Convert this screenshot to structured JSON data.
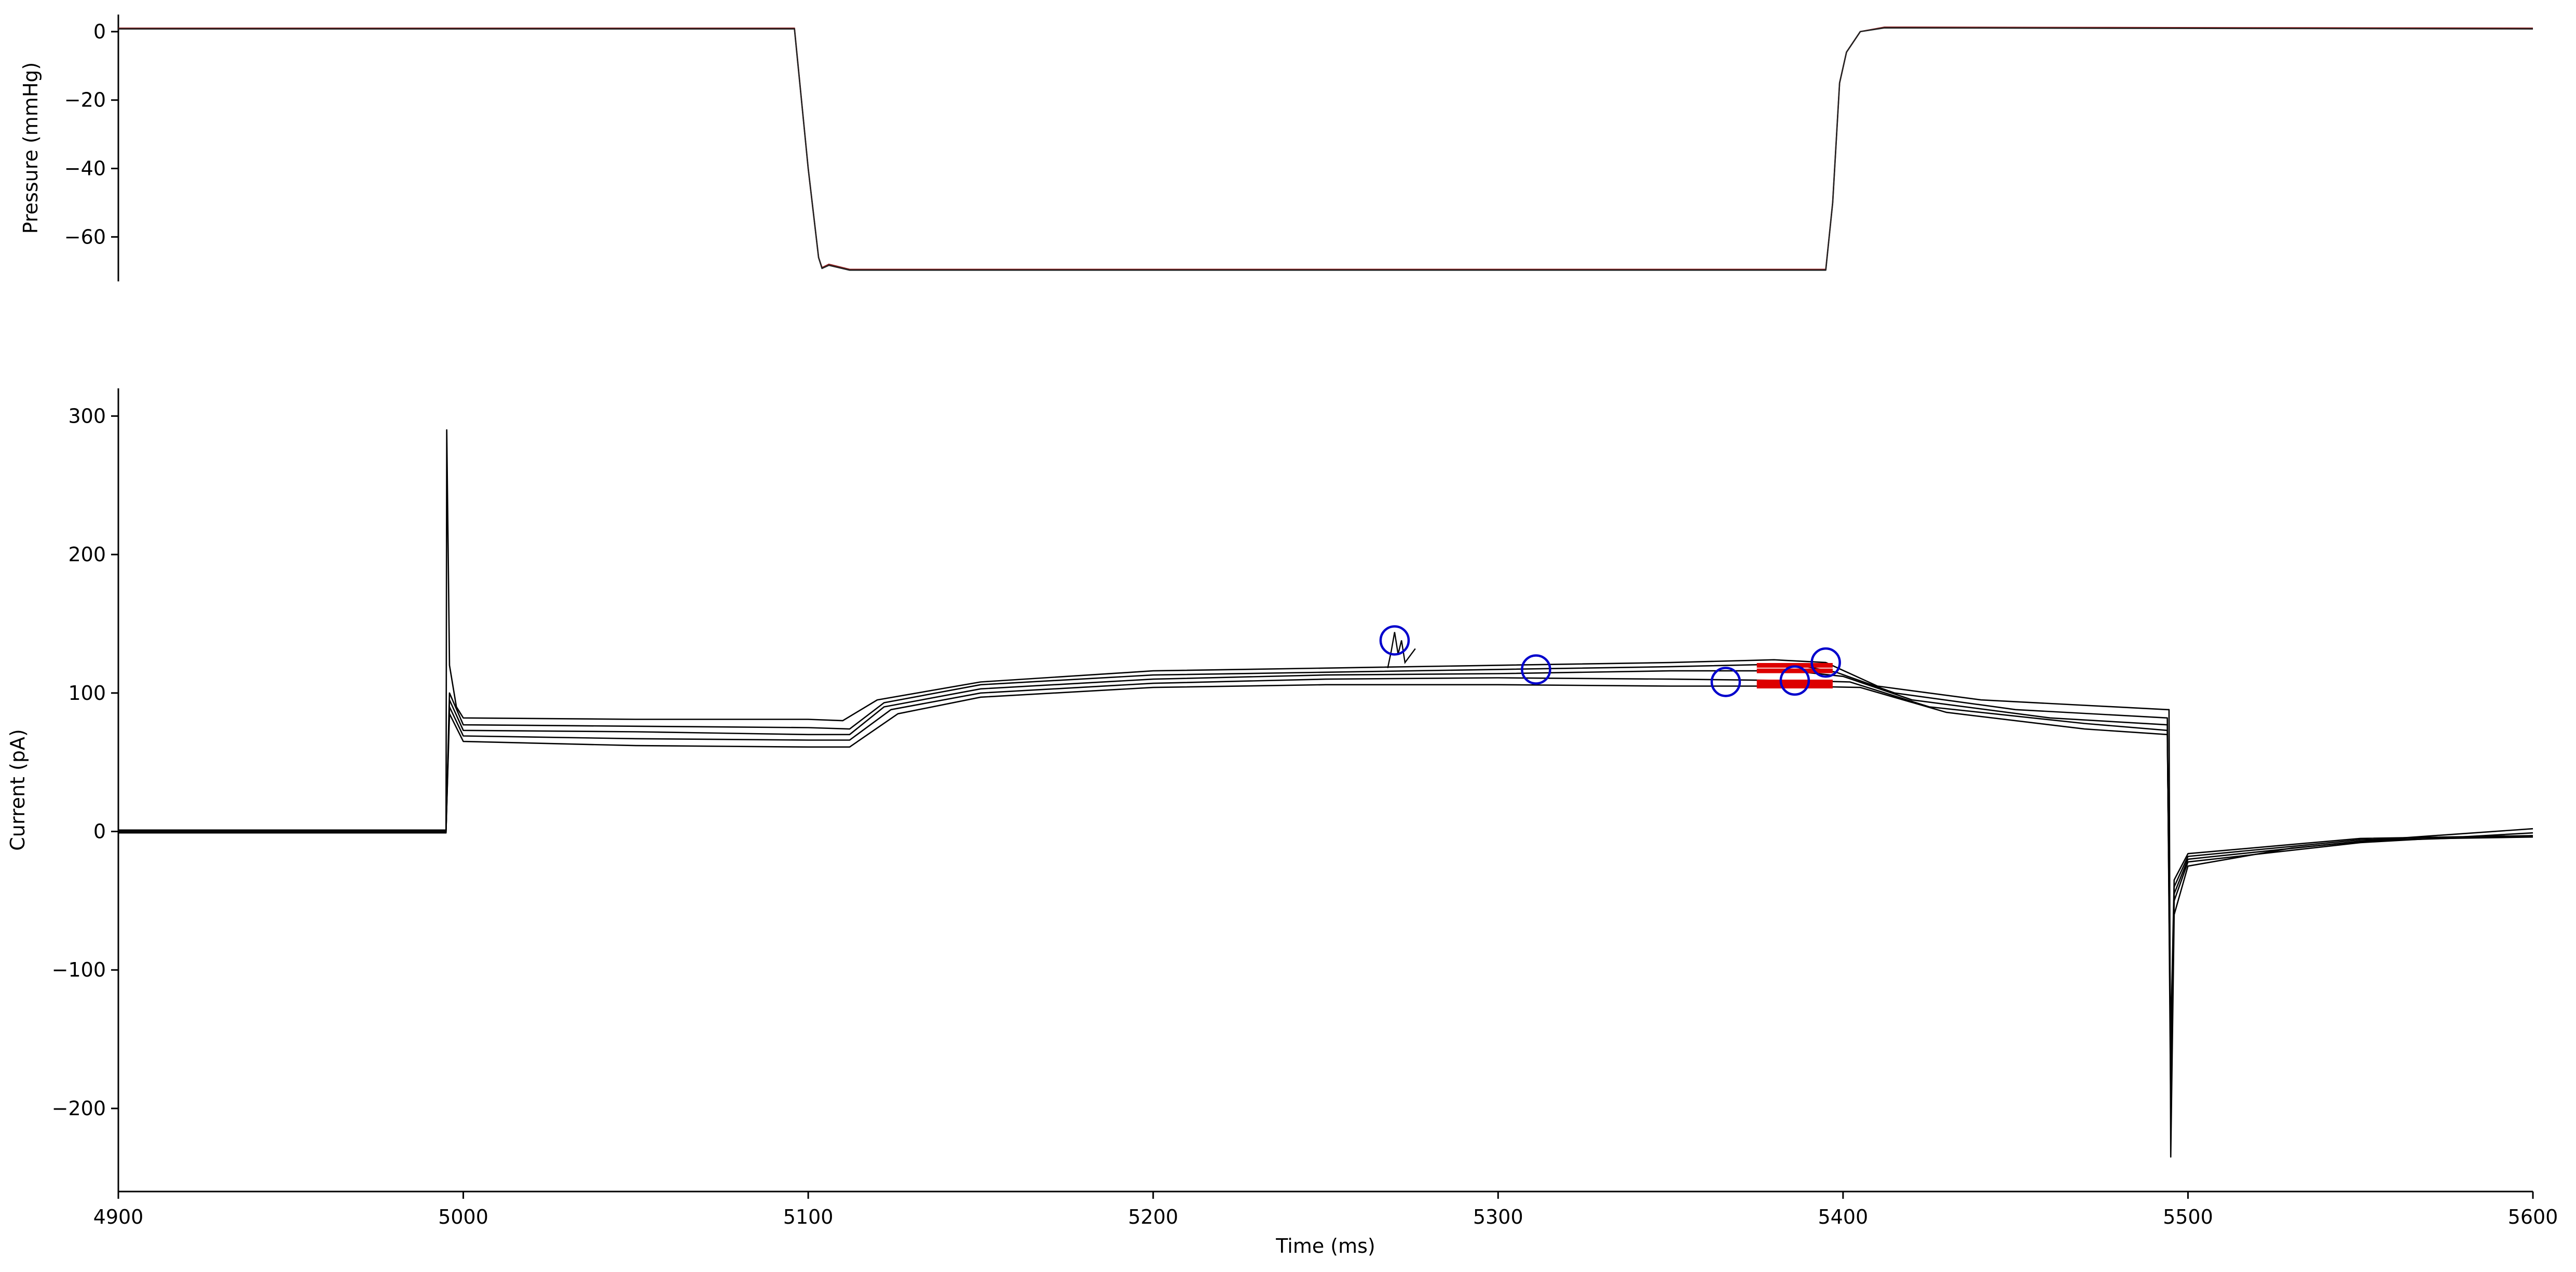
{
  "chart_data": [
    {
      "type": "line",
      "panel": "top",
      "ylabel": "Pressure (mmHg)",
      "xlabel": "",
      "xlim": [
        4900,
        5600
      ],
      "ylim": [
        -73,
        5
      ],
      "y_ticks": [
        0,
        -20,
        -40,
        -60
      ],
      "y_tick_labels": [
        "0",
        "−20",
        "−40",
        "−60"
      ],
      "grid": false,
      "series": [
        {
          "color": "#8b1a1a",
          "points": [
            [
              4900,
              1
            ],
            [
              5096,
              1
            ],
            [
              5100,
              -40
            ],
            [
              5103,
              -66
            ],
            [
              5104,
              -69
            ],
            [
              5106,
              -68
            ],
            [
              5112,
              -69.5
            ],
            [
              5395,
              -69.5
            ],
            [
              5397,
              -50
            ],
            [
              5399,
              -15
            ],
            [
              5401,
              -6
            ],
            [
              5405,
              0
            ],
            [
              5412,
              1.3
            ],
            [
              5600,
              1
            ]
          ]
        },
        {
          "color": "#222222",
          "points": [
            [
              4900,
              0.8
            ],
            [
              5096,
              0.8
            ],
            [
              5100,
              -40
            ],
            [
              5103,
              -66
            ],
            [
              5104,
              -69.2
            ],
            [
              5106,
              -68.3
            ],
            [
              5112,
              -69.7
            ],
            [
              5395,
              -69.7
            ],
            [
              5397,
              -50
            ],
            [
              5399,
              -15
            ],
            [
              5401,
              -6
            ],
            [
              5405,
              0
            ],
            [
              5412,
              1.1
            ],
            [
              5600,
              0.8
            ]
          ]
        }
      ]
    },
    {
      "type": "line",
      "panel": "bottom",
      "ylabel": "Current (pA)",
      "xlabel": "Time (ms)",
      "xlim": [
        4900,
        5600
      ],
      "ylim": [
        -260,
        320
      ],
      "x_ticks": [
        4900,
        5000,
        5100,
        5200,
        5300,
        5400,
        5500,
        5600
      ],
      "x_tick_labels": [
        "4900",
        "5000",
        "5100",
        "5200",
        "5300",
        "5400",
        "5500",
        "5600"
      ],
      "y_ticks": [
        300,
        200,
        100,
        0,
        -100,
        -200
      ],
      "y_tick_labels": [
        "300",
        "200",
        "100",
        "0",
        "−100",
        "−200"
      ],
      "grid": false,
      "series": [
        {
          "color": "#000000",
          "points": [
            [
              4900,
              1
            ],
            [
              4995,
              1
            ],
            [
              4995.2,
              290
            ],
            [
              4996,
              120
            ],
            [
              4998,
              90
            ],
            [
              5000,
              82
            ],
            [
              5050,
              81
            ],
            [
              5100,
              81
            ],
            [
              5110,
              80
            ],
            [
              5120,
              95
            ],
            [
              5150,
              108
            ],
            [
              5200,
              116
            ],
            [
              5250,
              118
            ],
            [
              5300,
              120
            ],
            [
              5350,
              122
            ],
            [
              5380,
              124
            ],
            [
              5395,
              122
            ],
            [
              5410,
              105
            ],
            [
              5440,
              95
            ],
            [
              5494,
              88
            ],
            [
              5494.5,
              88
            ],
            [
              5495,
              -235
            ],
            [
              5496,
              -60
            ],
            [
              5500,
              -25
            ],
            [
              5530,
              -12
            ],
            [
              5560,
              -5
            ],
            [
              5600,
              2
            ]
          ]
        },
        {
          "color": "#000000",
          "points": [
            [
              4900,
              0
            ],
            [
              4995,
              0
            ],
            [
              4996,
              100
            ],
            [
              5000,
              77
            ],
            [
              5050,
              76
            ],
            [
              5100,
              75
            ],
            [
              5112,
              74
            ],
            [
              5122,
              93
            ],
            [
              5150,
              106
            ],
            [
              5200,
              113
            ],
            [
              5250,
              115
            ],
            [
              5300,
              117
            ],
            [
              5350,
              119
            ],
            [
              5385,
              121
            ],
            [
              5398,
              115
            ],
            [
              5415,
              100
            ],
            [
              5450,
              88
            ],
            [
              5494,
              82
            ],
            [
              5495,
              -200
            ],
            [
              5496,
              -50
            ],
            [
              5500,
              -22
            ],
            [
              5550,
              -8
            ],
            [
              5600,
              -1
            ]
          ]
        },
        {
          "color": "#000000",
          "points": [
            [
              4900,
              0
            ],
            [
              4995,
              0
            ],
            [
              4996,
              95
            ],
            [
              5000,
              73
            ],
            [
              5050,
              72
            ],
            [
              5100,
              70
            ],
            [
              5112,
              70
            ],
            [
              5122,
              90
            ],
            [
              5150,
              103
            ],
            [
              5200,
              110
            ],
            [
              5250,
              113
            ],
            [
              5300,
              114
            ],
            [
              5350,
              116
            ],
            [
              5385,
              116
            ],
            [
              5400,
              112
            ],
            [
              5420,
              95
            ],
            [
              5460,
              82
            ],
            [
              5494,
              77
            ],
            [
              5495,
              -180
            ],
            [
              5496,
              -45
            ],
            [
              5500,
              -20
            ],
            [
              5550,
              -7
            ],
            [
              5600,
              -3
            ]
          ]
        },
        {
          "color": "#000000",
          "points": [
            [
              4900,
              -1
            ],
            [
              4995,
              -1
            ],
            [
              4996,
              90
            ],
            [
              5000,
              69
            ],
            [
              5050,
              67
            ],
            [
              5100,
              66
            ],
            [
              5112,
              66
            ],
            [
              5124,
              88
            ],
            [
              5150,
              100
            ],
            [
              5200,
              107
            ],
            [
              5250,
              110
            ],
            [
              5300,
              111
            ],
            [
              5350,
              110
            ],
            [
              5385,
              109
            ],
            [
              5402,
              108
            ],
            [
              5425,
              90
            ],
            [
              5470,
              78
            ],
            [
              5494,
              73
            ],
            [
              5495,
              -160
            ],
            [
              5496,
              -40
            ],
            [
              5500,
              -18
            ],
            [
              5550,
              -6
            ],
            [
              5600,
              -4
            ]
          ]
        },
        {
          "color": "#000000",
          "points": [
            [
              4900,
              0
            ],
            [
              4995,
              0
            ],
            [
              4996,
              85
            ],
            [
              5000,
              65
            ],
            [
              5050,
              62
            ],
            [
              5100,
              61
            ],
            [
              5112,
              61
            ],
            [
              5126,
              85
            ],
            [
              5150,
              97
            ],
            [
              5200,
              104
            ],
            [
              5250,
              106
            ],
            [
              5300,
              106
            ],
            [
              5350,
              105
            ],
            [
              5385,
              105
            ],
            [
              5405,
              104
            ],
            [
              5430,
              86
            ],
            [
              5470,
              74
            ],
            [
              5494,
              70
            ],
            [
              5495,
              -150
            ],
            [
              5496,
              -35
            ],
            [
              5500,
              -16
            ],
            [
              5550,
              -5
            ],
            [
              5600,
              -3
            ]
          ]
        }
      ],
      "spike_burst": {
        "x": [
          5268,
          5269,
          5270,
          5271,
          5272,
          5273,
          5276
        ],
        "y": [
          118,
          130,
          144,
          128,
          138,
          122,
          132
        ]
      },
      "highlight_segments": [
        {
          "color": "#dd0000",
          "x_start": 5375,
          "x_end": 5397,
          "y": 120
        },
        {
          "color": "#dd0000",
          "x_start": 5375,
          "x_end": 5397,
          "y": 116
        },
        {
          "color": "#dd0000",
          "x_start": 5375,
          "x_end": 5397,
          "y": 108
        },
        {
          "color": "#dd0000",
          "x_start": 5375,
          "x_end": 5397,
          "y": 105
        }
      ],
      "circle_markers": {
        "color": "#0000cc",
        "points": [
          [
            5270,
            138
          ],
          [
            5311,
            117
          ],
          [
            5366,
            108
          ],
          [
            5386,
            109
          ],
          [
            5395,
            122
          ]
        ]
      }
    }
  ]
}
